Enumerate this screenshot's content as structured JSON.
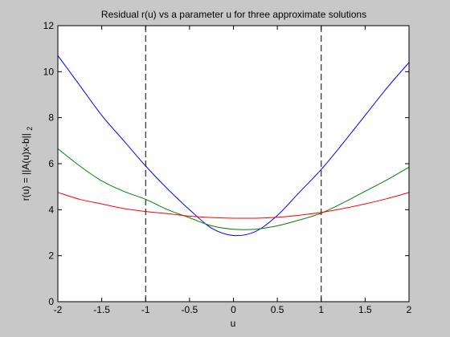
{
  "figure": {
    "background": "#c8c8c8",
    "axes_background": "#ffffff"
  },
  "chart_data": {
    "type": "line",
    "title": "Residual r(u) vs a parameter u for three approximate solutions",
    "xlabel": "u",
    "ylabel_main": "r(u) = ||A(u)x-b||",
    "ylabel_sub": "2",
    "xlim": [
      -2,
      2
    ],
    "ylim": [
      0,
      12
    ],
    "grid": false,
    "legend": "none",
    "x_ticks": [
      {
        "value": -2,
        "label": "-2"
      },
      {
        "value": -1.5,
        "label": "-1.5"
      },
      {
        "value": -1,
        "label": "-1"
      },
      {
        "value": -0.5,
        "label": "-0.5"
      },
      {
        "value": 0,
        "label": "0"
      },
      {
        "value": 0.5,
        "label": "0.5"
      },
      {
        "value": 1,
        "label": "1"
      },
      {
        "value": 1.5,
        "label": "1.5"
      },
      {
        "value": 2,
        "label": "2"
      }
    ],
    "y_ticks": [
      {
        "value": 0,
        "label": "0"
      },
      {
        "value": 2,
        "label": "2"
      },
      {
        "value": 4,
        "label": "4"
      },
      {
        "value": 6,
        "label": "6"
      },
      {
        "value": 8,
        "label": "8"
      },
      {
        "value": 10,
        "label": "10"
      },
      {
        "value": 12,
        "label": "12"
      }
    ],
    "vlines": [
      {
        "x": -1,
        "style": "dashed",
        "color": "#000000"
      },
      {
        "x": 1,
        "style": "dashed",
        "color": "#000000"
      }
    ],
    "series": [
      {
        "color": "#0000ff",
        "x": [
          -2,
          -1.75,
          -1.5,
          -1.25,
          -1,
          -0.75,
          -0.5,
          -0.25,
          0,
          0.25,
          0.5,
          0.75,
          1,
          1.25,
          1.5,
          1.75,
          2
        ],
        "y": [
          10.7,
          9.4,
          8.1,
          7.0,
          5.9,
          4.9,
          4.0,
          3.2,
          2.88,
          3.05,
          3.75,
          4.75,
          5.75,
          6.9,
          8.1,
          9.3,
          10.4
        ]
      },
      {
        "color": "#008000",
        "x": [
          -2,
          -1.75,
          -1.5,
          -1.25,
          -1,
          -0.75,
          -0.5,
          -0.25,
          0,
          0.25,
          0.5,
          0.75,
          1,
          1.25,
          1.5,
          1.75,
          2
        ],
        "y": [
          6.65,
          5.9,
          5.25,
          4.8,
          4.45,
          4.0,
          3.65,
          3.3,
          3.15,
          3.15,
          3.3,
          3.55,
          3.85,
          4.3,
          4.8,
          5.3,
          5.85
        ]
      },
      {
        "color": "#ff0000",
        "x": [
          -2,
          -1.75,
          -1.5,
          -1.25,
          -1,
          -0.75,
          -0.5,
          -0.25,
          0,
          0.25,
          0.5,
          0.75,
          1,
          1.25,
          1.5,
          1.75,
          2
        ],
        "y": [
          4.75,
          4.45,
          4.25,
          4.05,
          3.92,
          3.83,
          3.72,
          3.66,
          3.63,
          3.63,
          3.67,
          3.76,
          3.88,
          4.05,
          4.25,
          4.48,
          4.75
        ]
      }
    ]
  }
}
